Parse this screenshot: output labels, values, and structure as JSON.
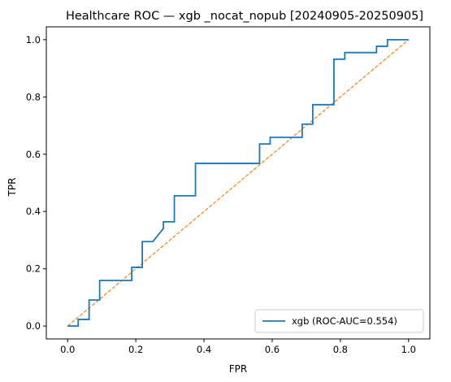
{
  "chart_data": {
    "type": "line",
    "title": "Healthcare ROC — xgb _nocat_nopub [20240905-20250905]",
    "xlabel": "FPR",
    "ylabel": "TPR",
    "xlim": [
      -0.0625,
      1.0625
    ],
    "ylim": [
      -0.045,
      1.045
    ],
    "x_ticks": [
      "0.0",
      "0.2",
      "0.4",
      "0.6",
      "0.8",
      "1.0"
    ],
    "y_ticks": [
      "0.0",
      "0.2",
      "0.4",
      "0.6",
      "0.8",
      "1.0"
    ],
    "grid": false,
    "legend_position": "lower-right",
    "series": [
      {
        "name": "xgb (ROC-AUC=0.554)",
        "color": "#1f77b4",
        "style": "solid",
        "points": [
          [
            0.0,
            0.0
          ],
          [
            0.031,
            0.0
          ],
          [
            0.031,
            0.023
          ],
          [
            0.063,
            0.023
          ],
          [
            0.063,
            0.091
          ],
          [
            0.094,
            0.091
          ],
          [
            0.094,
            0.159
          ],
          [
            0.188,
            0.159
          ],
          [
            0.188,
            0.205
          ],
          [
            0.219,
            0.205
          ],
          [
            0.219,
            0.295
          ],
          [
            0.25,
            0.295
          ],
          [
            0.281,
            0.341
          ],
          [
            0.281,
            0.364
          ],
          [
            0.313,
            0.364
          ],
          [
            0.313,
            0.455
          ],
          [
            0.375,
            0.455
          ],
          [
            0.375,
            0.568
          ],
          [
            0.563,
            0.568
          ],
          [
            0.563,
            0.636
          ],
          [
            0.594,
            0.636
          ],
          [
            0.594,
            0.659
          ],
          [
            0.688,
            0.659
          ],
          [
            0.688,
            0.705
          ],
          [
            0.719,
            0.705
          ],
          [
            0.719,
            0.773
          ],
          [
            0.781,
            0.773
          ],
          [
            0.781,
            0.932
          ],
          [
            0.813,
            0.932
          ],
          [
            0.813,
            0.955
          ],
          [
            0.906,
            0.955
          ],
          [
            0.906,
            0.977
          ],
          [
            0.938,
            0.977
          ],
          [
            0.938,
            1.0
          ],
          [
            1.0,
            1.0
          ]
        ]
      },
      {
        "name": "",
        "color": "#ff7f0e",
        "style": "dashed",
        "points": [
          [
            0.0,
            0.0
          ],
          [
            1.0,
            1.0
          ]
        ]
      }
    ]
  }
}
